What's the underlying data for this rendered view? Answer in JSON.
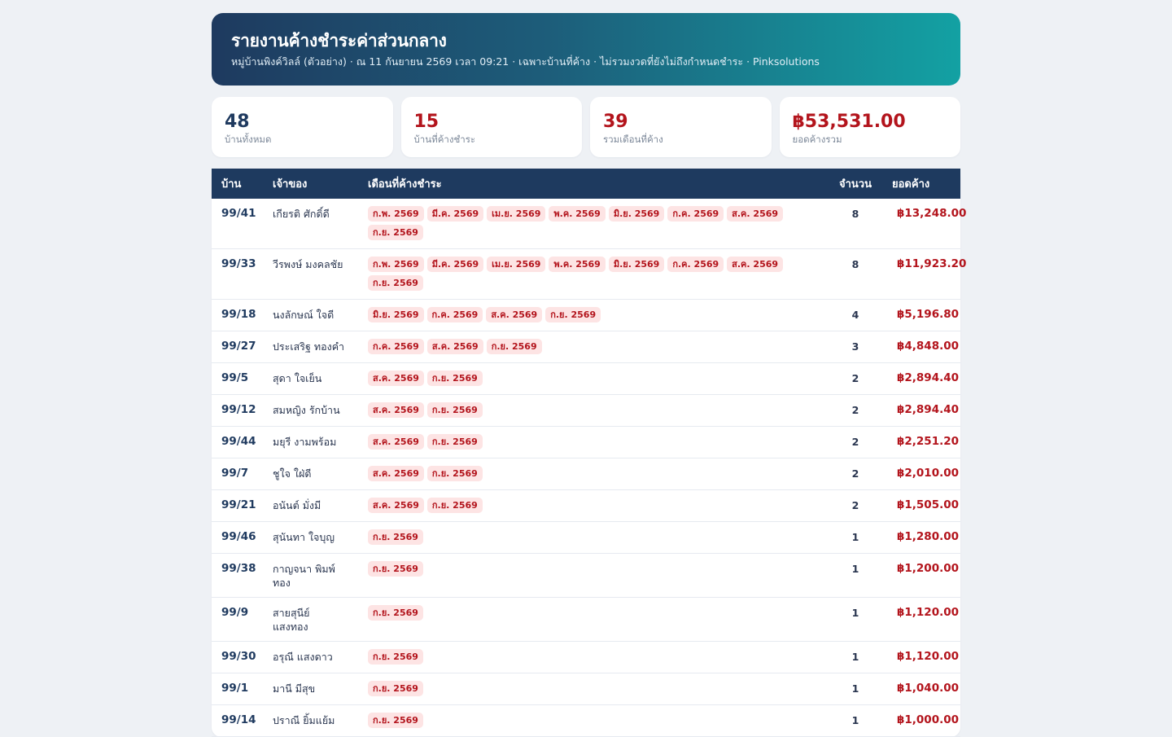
{
  "header": {
    "title": "รายงานค้างชำระค่าส่วนกลาง",
    "subtitle": "หมู่บ้านพิงค์วิลล์ (ตัวอย่าง) · ณ 11 กันยายน 2569 เวลา 09:21 · เฉพาะบ้านที่ค้าง · ไม่รวมงวดที่ยังไม่ถึงกำหนดชำระ · Pinksolutions"
  },
  "stats": [
    {
      "value": "48",
      "label": "บ้านทั้งหมด",
      "color": "#1f3a5f"
    },
    {
      "value": "15",
      "label": "บ้านที่ค้างชำระ",
      "color": "#b3141c"
    },
    {
      "value": "39",
      "label": "รวมเดือนที่ค้าง",
      "color": "#b3141c"
    },
    {
      "value": "฿53,531.00",
      "label": "ยอดค้างรวม",
      "color": "#b3141c"
    }
  ],
  "table": {
    "headers": {
      "house": "บ้าน",
      "owner": "เจ้าของ",
      "months": "เดือนที่ค้างชำระ",
      "count": "จำนวน",
      "amount": "ยอดค้าง"
    },
    "rows": [
      {
        "house": "99/41",
        "owner": "เกียรติ ศักดิ์ดี",
        "months": [
          "ก.พ. 2569",
          "มี.ค. 2569",
          "เม.ย. 2569",
          "พ.ค. 2569",
          "มิ.ย. 2569",
          "ก.ค. 2569",
          "ส.ค. 2569",
          "ก.ย. 2569"
        ],
        "count": "8",
        "amount": "฿13,248.00"
      },
      {
        "house": "99/33",
        "owner": "วีรพงษ์ มงคลชัย",
        "months": [
          "ก.พ. 2569",
          "มี.ค. 2569",
          "เม.ย. 2569",
          "พ.ค. 2569",
          "มิ.ย. 2569",
          "ก.ค. 2569",
          "ส.ค. 2569",
          "ก.ย. 2569"
        ],
        "count": "8",
        "amount": "฿11,923.20"
      },
      {
        "house": "99/18",
        "owner": "นงลักษณ์ ใจดี",
        "months": [
          "มิ.ย. 2569",
          "ก.ค. 2569",
          "ส.ค. 2569",
          "ก.ย. 2569"
        ],
        "count": "4",
        "amount": "฿5,196.80"
      },
      {
        "house": "99/27",
        "owner": "ประเสริฐ ทองคำ",
        "months": [
          "ก.ค. 2569",
          "ส.ค. 2569",
          "ก.ย. 2569"
        ],
        "count": "3",
        "amount": "฿4,848.00"
      },
      {
        "house": "99/5",
        "owner": "สุดา ใจเย็น",
        "months": [
          "ส.ค. 2569",
          "ก.ย. 2569"
        ],
        "count": "2",
        "amount": "฿2,894.40"
      },
      {
        "house": "99/12",
        "owner": "สมหญิง รักบ้าน",
        "months": [
          "ส.ค. 2569",
          "ก.ย. 2569"
        ],
        "count": "2",
        "amount": "฿2,894.40"
      },
      {
        "house": "99/44",
        "owner": "มยุรี งามพร้อม",
        "months": [
          "ส.ค. 2569",
          "ก.ย. 2569"
        ],
        "count": "2",
        "amount": "฿2,251.20"
      },
      {
        "house": "99/7",
        "owner": "ชูใจ ใฝ่ดี",
        "months": [
          "ส.ค. 2569",
          "ก.ย. 2569"
        ],
        "count": "2",
        "amount": "฿2,010.00"
      },
      {
        "house": "99/21",
        "owner": "อนันต์ มั่งมี",
        "months": [
          "ส.ค. 2569",
          "ก.ย. 2569"
        ],
        "count": "2",
        "amount": "฿1,505.00"
      },
      {
        "house": "99/46",
        "owner": "สุนันทา ใจบุญ",
        "months": [
          "ก.ย. 2569"
        ],
        "count": "1",
        "amount": "฿1,280.00"
      },
      {
        "house": "99/38",
        "owner": "กาญจนา พิมพ์ทอง",
        "months": [
          "ก.ย. 2569"
        ],
        "count": "1",
        "amount": "฿1,200.00"
      },
      {
        "house": "99/9",
        "owner": "สายสุนีย์ แสงทอง",
        "months": [
          "ก.ย. 2569"
        ],
        "count": "1",
        "amount": "฿1,120.00"
      },
      {
        "house": "99/30",
        "owner": "อรุณี แสงดาว",
        "months": [
          "ก.ย. 2569"
        ],
        "count": "1",
        "amount": "฿1,120.00"
      },
      {
        "house": "99/1",
        "owner": "มานี มีสุข",
        "months": [
          "ก.ย. 2569"
        ],
        "count": "1",
        "amount": "฿1,040.00"
      },
      {
        "house": "99/14",
        "owner": "ปราณี ยิ้มแย้ม",
        "months": [
          "ก.ย. 2569"
        ],
        "count": "1",
        "amount": "฿1,000.00"
      }
    ]
  }
}
